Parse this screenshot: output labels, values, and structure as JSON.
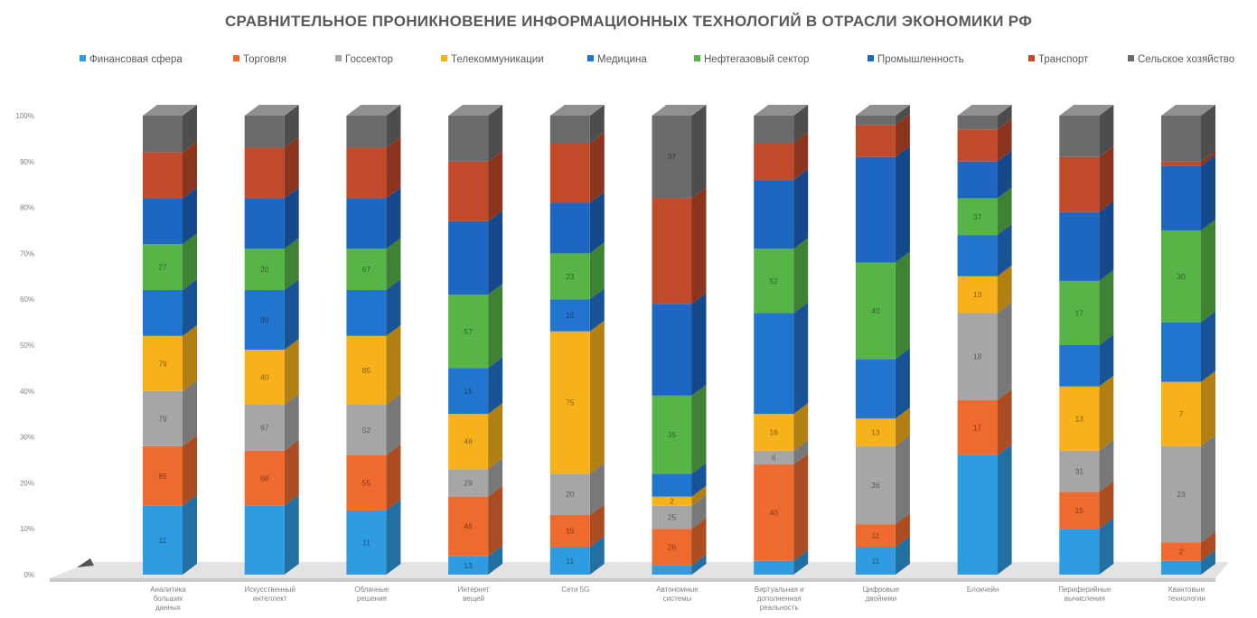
{
  "chart_data": {
    "type": "bar",
    "stacked": "percent",
    "title": "СРАВНИТЕЛЬНОЕ ПРОНИКНОВЕНИЕ ИНФОРМАЦИОННЫХ ТЕХНОЛОГИЙ В ОТРАСЛИ ЭКОНОМИКИ РФ",
    "legend_position": "top",
    "ylim": [
      0,
      100
    ],
    "yticks": [
      "0%",
      "10%",
      "20%",
      "30%",
      "40%",
      "50%",
      "60%",
      "70%",
      "80%",
      "90%",
      "100%"
    ],
    "categories": [
      "Аналитика больших данных",
      "Искусственный интеллект",
      "Облачные решения",
      "Интернет вещей",
      "Сети 5G",
      "Автономные системы",
      "Виртуальная и дополненная реальность",
      "Цифровые двойники",
      "Блокчейн",
      "Периферийные вычисления",
      "Квантовые технологии"
    ],
    "series": [
      {
        "name": "Финансовая сфера",
        "color": "#2f9be0",
        "values": [
          15,
          15,
          14,
          4,
          6,
          2,
          3,
          6,
          26,
          10,
          3
        ]
      },
      {
        "name": "Торговля",
        "color": "#ee6a2f",
        "values": [
          13,
          12,
          12,
          13,
          7,
          8,
          21,
          5,
          12,
          8,
          4
        ]
      },
      {
        "name": "Госсектор",
        "color": "#a6a6a6",
        "values": [
          12,
          10,
          11,
          6,
          9,
          5,
          3,
          17,
          19,
          9,
          21
        ]
      },
      {
        "name": "Телекоммуникации",
        "color": "#f7b11a",
        "values": [
          12,
          12,
          15,
          12,
          31,
          2,
          8,
          6,
          8,
          14,
          14
        ]
      },
      {
        "name": "Медицина",
        "color": "#2275cf",
        "values": [
          10,
          13,
          10,
          10,
          7,
          5,
          22,
          13,
          9,
          9,
          13
        ]
      },
      {
        "name": "Нефтегазовый сектор",
        "color": "#57b547",
        "values": [
          10,
          9,
          9,
          16,
          10,
          17,
          14,
          21,
          8,
          14,
          20
        ]
      },
      {
        "name": "Промышленность",
        "color": "#1d66c1",
        "values": [
          10,
          11,
          11,
          16,
          11,
          20,
          15,
          23,
          8,
          15,
          14
        ]
      },
      {
        "name": "Транспорт",
        "color": "#c14a2b",
        "values": [
          10,
          11,
          11,
          13,
          13,
          23,
          8,
          7,
          7,
          12,
          1
        ]
      },
      {
        "name": "Сельское хозяйство",
        "color": "#6b6b6b",
        "values": [
          8,
          7,
          7,
          10,
          6,
          18,
          6,
          2,
          3,
          9,
          10
        ]
      }
    ],
    "data_labels": [
      [
        "11",
        "85",
        "79",
        "79",
        "",
        "27",
        "",
        "",
        ""
      ],
      [
        "",
        "68",
        "97",
        "40",
        "80",
        "20",
        "",
        "",
        ""
      ],
      [
        "11",
        "55",
        "52",
        "85",
        "",
        "67",
        "",
        "",
        ""
      ],
      [
        "13",
        "48",
        "29",
        "48",
        "15",
        "57",
        "",
        "",
        ""
      ],
      [
        "11",
        "15",
        "20",
        "75",
        "15",
        "23",
        "",
        "",
        ""
      ],
      [
        "",
        "26",
        "25",
        "2",
        "",
        "35",
        "",
        "",
        "37"
      ],
      [
        "",
        "40",
        "6",
        "16",
        "",
        "52",
        "",
        "",
        ""
      ],
      [
        "11",
        "11",
        "36",
        "13",
        "",
        "40",
        "",
        "",
        ""
      ],
      [
        "",
        "17",
        "18",
        "13",
        "",
        "37",
        "",
        "",
        ""
      ],
      [
        "",
        "15",
        "31",
        "13",
        "",
        "17",
        "",
        "",
        ""
      ],
      [
        "",
        "2",
        "23",
        "7",
        "",
        "30",
        "",
        "",
        ""
      ]
    ]
  }
}
